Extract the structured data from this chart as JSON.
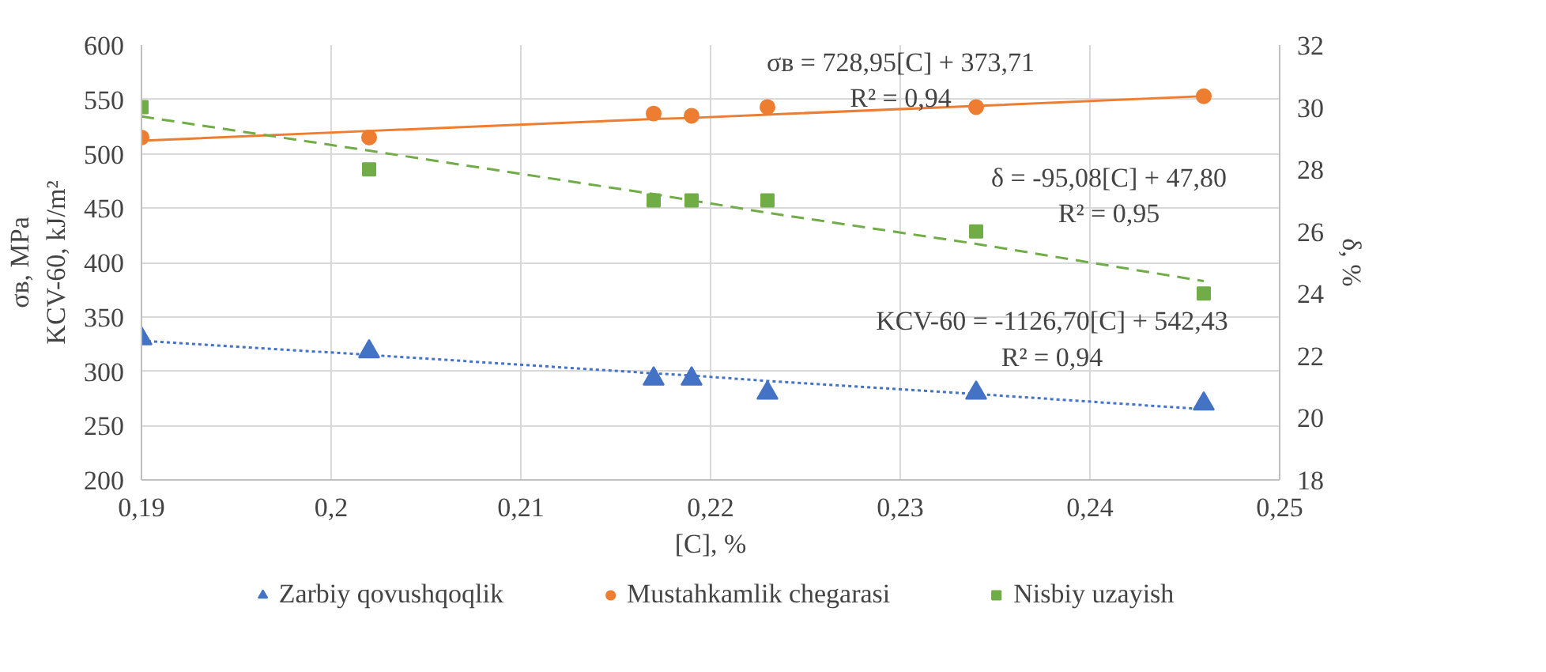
{
  "chart_data": {
    "type": "scatter",
    "xlabel": "[C], %",
    "ylabel": "σв, MPa\nKCV-60, kJ/m²",
    "y2label": "δ, %",
    "xlim": [
      0.19,
      0.25
    ],
    "xticks": [
      {
        "value": 0.19,
        "label": "0,19"
      },
      {
        "value": 0.2,
        "label": "0,2"
      },
      {
        "value": 0.21,
        "label": "0,21"
      },
      {
        "value": 0.22,
        "label": "0,22"
      },
      {
        "value": 0.23,
        "label": "0,23"
      },
      {
        "value": 0.24,
        "label": "0,24"
      },
      {
        "value": 0.25,
        "label": "0,25"
      }
    ],
    "ylim": [
      200,
      600
    ],
    "yticks": [
      200,
      250,
      300,
      350,
      400,
      450,
      500,
      550,
      600
    ],
    "y2lim": [
      18,
      32
    ],
    "y2ticks": [
      18,
      20,
      22,
      24,
      26,
      28,
      30,
      32
    ],
    "x": [
      0.19,
      0.202,
      0.217,
      0.219,
      0.223,
      0.234,
      0.246
    ],
    "series": [
      {
        "name": "Zarbiy qovushqoqlik",
        "color": "#4472c4",
        "marker": "triangle",
        "values": [
          330,
          318,
          293,
          293,
          280,
          280,
          270
        ]
      },
      {
        "name": "Mustahkamlik chegarasi",
        "color": "#ed7d31",
        "marker": "circle",
        "values": [
          515,
          515,
          537,
          535,
          543,
          543,
          553
        ]
      },
      {
        "name": "Nisbiy uzayish",
        "color": "#70ad47",
        "marker": "square",
        "axis": "y2",
        "values": [
          30,
          28,
          27,
          27,
          27,
          26,
          24
        ]
      },
      {
        "type": "line",
        "color": "#4472c4",
        "line_style": "dotted",
        "values": [
          328,
          315,
          298,
          296,
          291,
          279,
          265
        ]
      },
      {
        "type": "line",
        "color": "#ed7d31",
        "line_style": "solid",
        "values": [
          512,
          521,
          532,
          533,
          536,
          544,
          553
        ]
      },
      {
        "type": "line",
        "color": "#70ad47",
        "line_style": "dashed",
        "axis": "y2",
        "values": [
          29.7,
          28.6,
          27.2,
          27.0,
          26.6,
          25.6,
          24.4
        ]
      }
    ],
    "annotations": [
      "σв = 728,95[C] + 373,71\nR² = 0,94",
      "δ = -95,08[C] + 47,80\nR² = 0,95",
      "KCV-60 = -1126,70[C] + 542,43\nR² = 0,94"
    ],
    "grid": true,
    "legend": "bottom"
  }
}
